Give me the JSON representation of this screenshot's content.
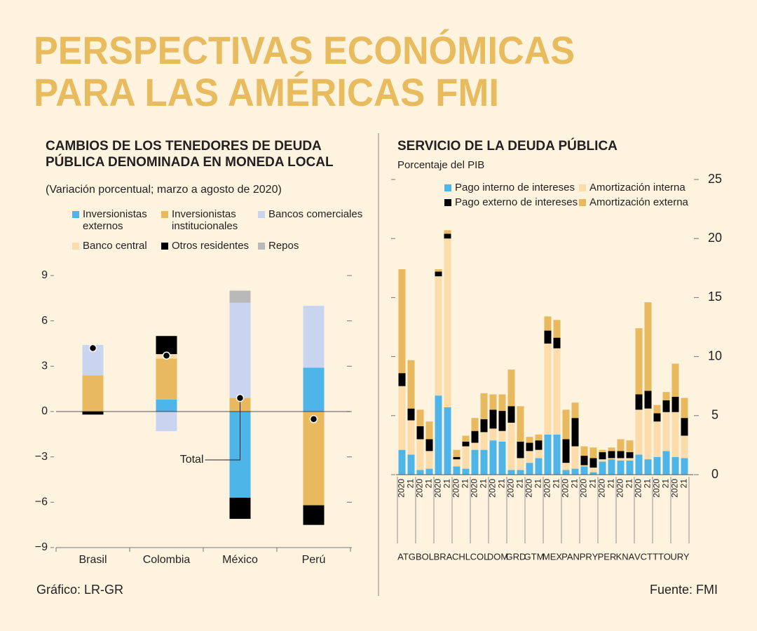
{
  "header": {
    "title": [
      "PERSPECTIVAS ECONÓMICAS",
      "PARA LAS AMÉRICAS FMI"
    ]
  },
  "chart_data": [
    {
      "type": "bar",
      "stacked": true,
      "title": [
        "CAMBIOS DE LOS TENEDORES DE DEUDA",
        "PÚBLICA DENOMINADA EN MONEDA LOCAL"
      ],
      "subtitle": "(Variación porcentual; marzo a agosto de 2020)",
      "categories": [
        "Brasil",
        "Colombia",
        "México",
        "Perú"
      ],
      "series": [
        {
          "name": "Inversionistas externos",
          "color": "#4db5e8",
          "values": [
            null,
            0.8,
            -5.7,
            2.9
          ]
        },
        {
          "name": "Inversionistas institucionales",
          "color": "#e8b95e",
          "values": [
            2.4,
            2.7,
            0.9,
            -6.2
          ]
        },
        {
          "name": "Bancos comerciales",
          "color": "#c8d4f0",
          "values": [
            2.0,
            -1.3,
            6.3,
            4.1
          ]
        },
        {
          "name": "Banco central",
          "color": "#fbdcaa",
          "values": [
            null,
            0.3,
            null,
            null
          ]
        },
        {
          "name": "Otros residentes",
          "color": "#000000",
          "values": [
            -0.2,
            1.2,
            -1.4,
            -1.3
          ]
        },
        {
          "name": "Repos",
          "color": "#b9b9b9",
          "values": [
            null,
            null,
            0.8,
            null
          ]
        }
      ],
      "totals": {
        "name": "Total",
        "values": [
          4.2,
          3.7,
          0.9,
          -0.5
        ]
      },
      "ylim": [
        -9,
        9
      ],
      "yticks": [
        {
          "value": -9,
          "label": "−9"
        },
        {
          "value": -6,
          "label": "−6"
        },
        {
          "value": -3,
          "label": "−3"
        },
        0,
        3,
        6,
        9
      ]
    },
    {
      "type": "bar",
      "stacked": true,
      "title": [
        "SERVICIO DE LA DEUDA PÚBLICA"
      ],
      "subtitle": "Porcentaje del PIB",
      "categories": [
        "2020",
        "21",
        "2020",
        "21",
        "2020",
        "21",
        "2020",
        "21",
        "2020",
        "21",
        "2020",
        "21",
        "2020",
        "21",
        "2020",
        "21",
        "2020",
        "21",
        "2020",
        "21",
        "2020",
        "21",
        "2020",
        "21",
        "2020",
        "21",
        "2020",
        "21",
        "2020",
        "21",
        "2020",
        "21"
      ],
      "groups": [
        "ATG",
        "BOL",
        "BRA",
        "CHL",
        "COL",
        "DOM",
        "GRD",
        "GTM",
        "MEX",
        "PAN",
        "PRY",
        "PER",
        "KNA",
        "VCT",
        "TTO",
        "URY"
      ],
      "series": [
        {
          "name": "Pago interno de intereses",
          "color": "#4db5e8",
          "values": [
            2.1,
            1.7,
            0.4,
            0.5,
            6.7,
            5.7,
            0.7,
            0.5,
            2.1,
            2.1,
            2.9,
            2.8,
            0.4,
            0.4,
            1.0,
            1.4,
            3.4,
            3.4,
            0.4,
            0.5,
            0.7,
            0.2,
            1.1,
            1.3,
            1.2,
            1.2,
            1.7,
            1.3,
            1.5,
            2.0,
            1.5,
            1.4
          ]
        },
        {
          "name": "Amortización interna",
          "color": "#fbdcaa",
          "values": [
            5.4,
            2.9,
            2.6,
            1.5,
            10.1,
            14.3,
            0.6,
            1.9,
            0.6,
            1.5,
            1.0,
            0.9,
            4.0,
            1.0,
            1.0,
            0.7,
            7.7,
            7.3,
            0.6,
            1.9,
            0.1,
            0.4,
            0.2,
            0.1,
            0.2,
            0.2,
            3.8,
            4.3,
            3.0,
            3.3,
            3.8,
            1.9
          ]
        },
        {
          "name": "Pago externo de intereses",
          "color": "#000000",
          "values": [
            1.1,
            1.0,
            1.1,
            1.0,
            0.4,
            0.4,
            0.2,
            0.4,
            1.0,
            1.1,
            1.6,
            1.7,
            1.4,
            1.4,
            0.7,
            0.8,
            1.1,
            0.9,
            2.0,
            2.4,
            0.8,
            0.8,
            0.6,
            0.6,
            0.6,
            0.5,
            1.3,
            1.5,
            0.7,
            1.0,
            1.3,
            1.5
          ]
        },
        {
          "name": "Amortización externa",
          "color": "#e8b95e",
          "values": [
            8.8,
            4.1,
            1.4,
            1.5,
            0.2,
            0.3,
            0.6,
            0.5,
            1.1,
            2.2,
            1.3,
            1.4,
            3.1,
            3.0,
            0.5,
            0.5,
            1.2,
            1.5,
            2.5,
            1.3,
            0.8,
            0.9,
            0.2,
            0.3,
            1.0,
            1.0,
            5.6,
            7.5,
            0.7,
            0.7,
            2.8,
            1.7
          ]
        }
      ],
      "ylim": [
        0,
        25
      ],
      "yticks": [
        0,
        5,
        10,
        15,
        20,
        25
      ]
    }
  ],
  "footer": {
    "credit": "Gráfico: LR-GR",
    "source": "Fuente: FMI"
  }
}
